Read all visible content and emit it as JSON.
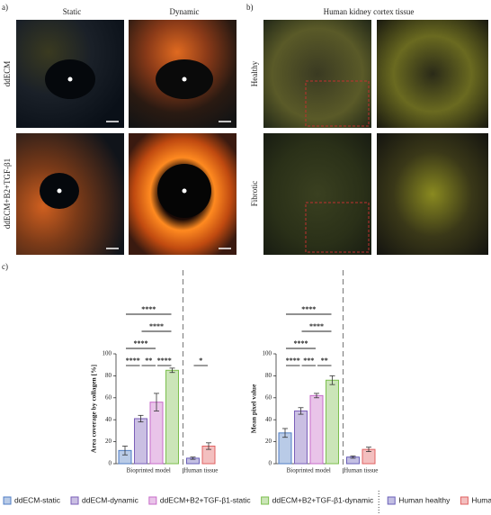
{
  "figure": {
    "a": {
      "label": "a)",
      "columns": [
        "Static",
        "Dynamic"
      ],
      "rows": [
        "ddECM",
        "ddECM+B2+TGF-β1"
      ]
    },
    "b": {
      "label": "b)",
      "title": "Human kidney cortex tissue",
      "rows": [
        "Healthy",
        "Fibrotic"
      ]
    },
    "c": {
      "label": "c)"
    }
  },
  "chart_data": [
    {
      "type": "bar",
      "y_label": "Area coverage by collagen [%]",
      "categories": [
        "Bioprinted model",
        "Human tissue"
      ],
      "ylim": [
        0,
        100
      ],
      "yticks": [
        0,
        20,
        40,
        60,
        80,
        100
      ],
      "series": [
        {
          "name": "ddECM-static",
          "color": "#4f7ec4",
          "values": [
            12,
            null
          ],
          "errors": [
            4,
            null
          ]
        },
        {
          "name": "ddECM-dynamic",
          "color": "#7b5fb8",
          "values": [
            41,
            null
          ],
          "errors": [
            3,
            null
          ]
        },
        {
          "name": "ddECM+B2+TGF-β1-static",
          "color": "#c76bc9",
          "values": [
            56,
            null
          ],
          "errors": [
            8,
            null
          ]
        },
        {
          "name": "ddECM+B2+TGF-β1-dynamic",
          "color": "#7cbf4e",
          "values": [
            85,
            null
          ],
          "errors": [
            2,
            null
          ]
        },
        {
          "name": "Human healthy",
          "color": "#6a5fb8",
          "values": [
            null,
            5
          ],
          "errors": [
            null,
            1
          ]
        },
        {
          "name": "Human fibrotic",
          "color": "#e06060",
          "values": [
            null,
            16
          ],
          "errors": [
            null,
            3
          ]
        }
      ],
      "significance": [
        {
          "label": "****",
          "pair": [
            0,
            3
          ]
        },
        {
          "label": "****",
          "pair": [
            1,
            3
          ]
        },
        {
          "label": "****",
          "pair": [
            0,
            2
          ]
        },
        {
          "label": "**",
          "pair": [
            1,
            2
          ]
        },
        {
          "label": "****",
          "pair": [
            0,
            1
          ]
        },
        {
          "label": "****",
          "pair": [
            2,
            3
          ]
        },
        {
          "label": "*",
          "pair": [
            4,
            5
          ]
        }
      ]
    },
    {
      "type": "bar",
      "y_label": "Mean pixel value",
      "categories": [
        "Bioprinted model",
        "Human tissue"
      ],
      "ylim": [
        0,
        100
      ],
      "yticks": [
        0,
        20,
        40,
        60,
        80,
        100
      ],
      "series": [
        {
          "color": "#4f7ec4",
          "values": [
            28,
            null
          ],
          "errors": [
            4,
            null
          ]
        },
        {
          "color": "#7b5fb8",
          "values": [
            48,
            null
          ],
          "errors": [
            3,
            null
          ]
        },
        {
          "color": "#c76bc9",
          "values": [
            62,
            null
          ],
          "errors": [
            2,
            null
          ]
        },
        {
          "color": "#7cbf4e",
          "values": [
            76,
            null
          ],
          "errors": [
            4,
            null
          ]
        },
        {
          "color": "#6a5fb8",
          "values": [
            null,
            6
          ],
          "errors": [
            null,
            1
          ]
        },
        {
          "color": "#e06060",
          "values": [
            null,
            13
          ],
          "errors": [
            null,
            2
          ]
        }
      ],
      "significance": [
        {
          "label": "****",
          "pair": [
            0,
            3
          ]
        },
        {
          "label": "****",
          "pair": [
            1,
            3
          ]
        },
        {
          "label": "****",
          "pair": [
            0,
            2
          ]
        },
        {
          "label": "***",
          "pair": [
            1,
            2
          ]
        },
        {
          "label": "****",
          "pair": [
            0,
            1
          ]
        },
        {
          "label": "**",
          "pair": [
            2,
            3
          ]
        }
      ]
    }
  ]
}
